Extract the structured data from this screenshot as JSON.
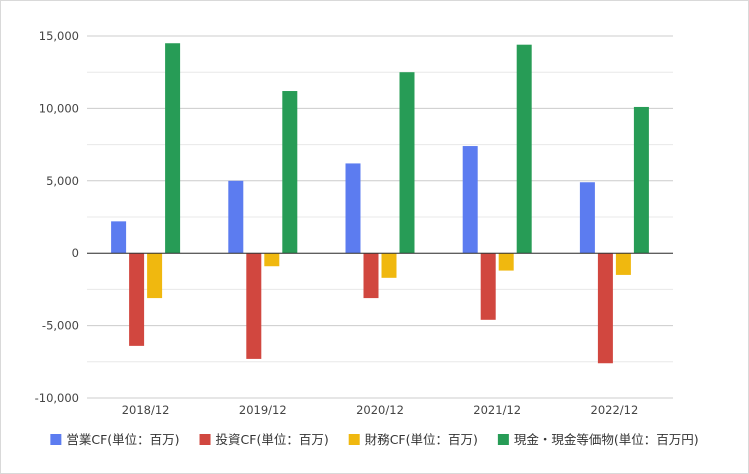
{
  "chart_data": {
    "type": "bar",
    "categories": [
      "2018/12",
      "2019/12",
      "2020/12",
      "2021/12",
      "2022/12"
    ],
    "series": [
      {
        "name": "営業CF(単位：百万)",
        "color": "#5c7cf0",
        "values": [
          2200,
          5000,
          6200,
          7400,
          4900
        ]
      },
      {
        "name": "投資CF(単位：百万)",
        "color": "#d1473f",
        "values": [
          -6400,
          -7300,
          -3100,
          -4600,
          -7600
        ]
      },
      {
        "name": "財務CF(単位：百万)",
        "color": "#f0b80f",
        "values": [
          -3100,
          -900,
          -1700,
          -1200,
          -1500
        ]
      },
      {
        "name": "現金・現金等価物(単位：百万円)",
        "color": "#279c56",
        "values": [
          14500,
          11200,
          12500,
          14400,
          10100
        ]
      }
    ],
    "ylim": [
      -10000,
      15000
    ],
    "yticks": [
      -10000,
      -5000,
      0,
      5000,
      10000,
      15000
    ],
    "ytick_labels": [
      "-10,000",
      "-5,000",
      "0",
      "5,000",
      "10,000",
      "15,000"
    ],
    "minor_grid_step": 2500,
    "grid": true,
    "legend_position": "bottom",
    "title": "",
    "xlabel": "",
    "ylabel": ""
  }
}
